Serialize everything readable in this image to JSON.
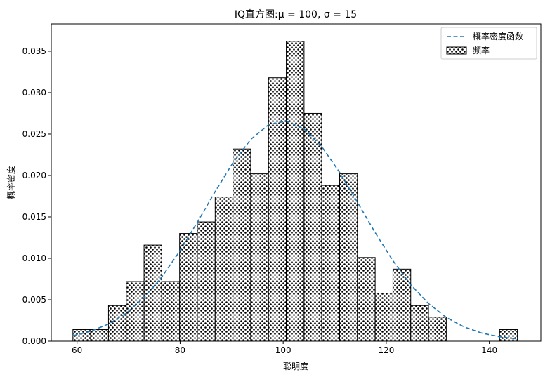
{
  "chart_data": {
    "type": "bar",
    "title": "IQ直方图:μ = 100, σ = 15",
    "xlabel": "聪明度",
    "ylabel": "概率密度",
    "xlim": [
      55,
      150
    ],
    "ylim": [
      0,
      0.0383
    ],
    "xticks": [
      60,
      80,
      100,
      120,
      140
    ],
    "yticks": [
      0.0,
      0.005,
      0.01,
      0.015,
      0.02,
      0.025,
      0.03,
      0.035
    ],
    "ytick_labels": [
      "0.000",
      "0.005",
      "0.010",
      "0.015",
      "0.020",
      "0.025",
      "0.030",
      "0.035"
    ],
    "grid": false,
    "legend_position": "top-right",
    "bins": {
      "start": 59.2,
      "width": 3.45,
      "values": [
        0.0014,
        0.0014,
        0.0043,
        0.0072,
        0.0116,
        0.0072,
        0.013,
        0.0144,
        0.0174,
        0.0232,
        0.0202,
        0.0318,
        0.0362,
        0.0275,
        0.0188,
        0.0202,
        0.0101,
        0.0058,
        0.0087,
        0.0043,
        0.0029,
        0.0,
        0.0,
        0.0,
        0.0014
      ]
    },
    "pdf": {
      "mu": 100,
      "sigma": 15
    },
    "series": [
      {
        "name": "概率密度函数",
        "kind": "line",
        "color": "#1f77b4",
        "style": "dashed"
      },
      {
        "name": "频率",
        "kind": "histogram",
        "hatch": "dots",
        "color": "#000000"
      }
    ]
  }
}
